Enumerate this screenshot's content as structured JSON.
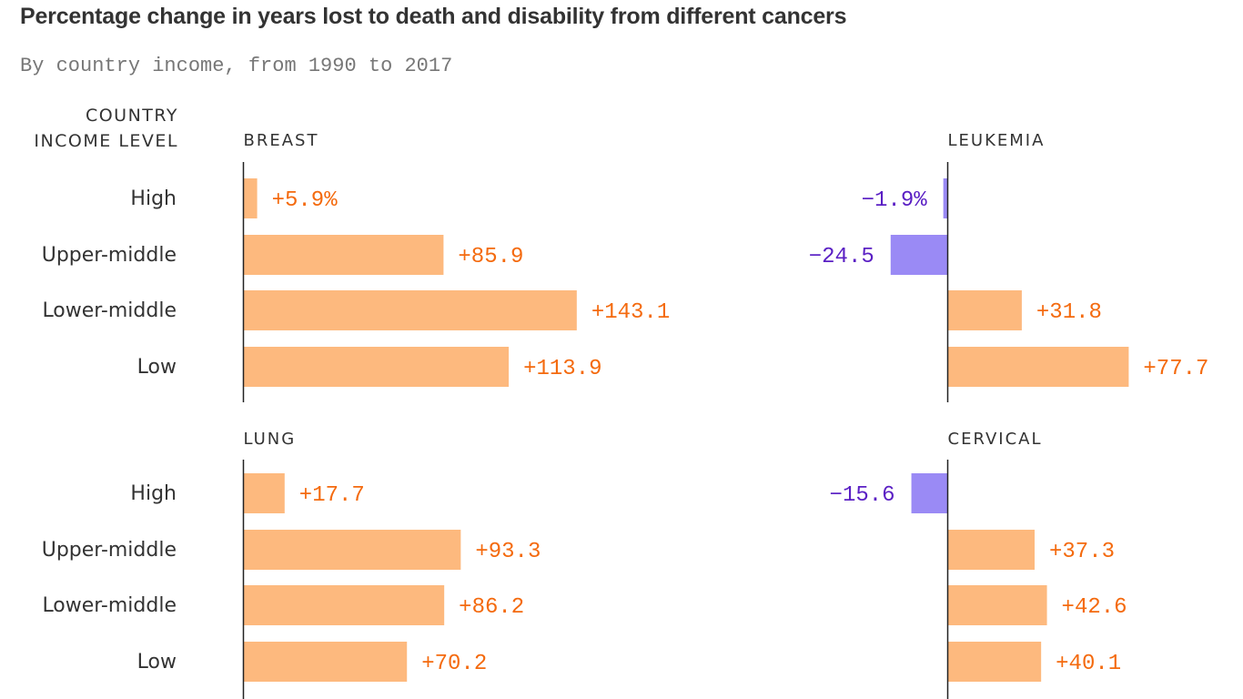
{
  "title": "Percentage change in years lost to death and disability from different cancers",
  "subtitle": "By country income, from 1990 to 2017",
  "chart_data": {
    "type": "bar",
    "orientation": "horizontal",
    "row_header": [
      "COUNTRY",
      "INCOME LEVEL"
    ],
    "categories": [
      "High",
      "Upper-middle",
      "Lower-middle",
      "Low"
    ],
    "colors": {
      "positive_bar": "#fdb97e",
      "positive_text": "#f46a0e",
      "negative_bar": "#9a8af5",
      "negative_text": "#5a1fc4",
      "axis": "#222222"
    },
    "panels": [
      {
        "name": "BREAST",
        "values": [
          5.9,
          85.9,
          143.1,
          113.9
        ],
        "labels": [
          "+5.9%",
          "+85.9",
          "+143.1",
          "+113.9"
        ]
      },
      {
        "name": "LEUKEMIA",
        "values": [
          -1.9,
          -24.5,
          31.8,
          77.7
        ],
        "labels": [
          "−1.9%",
          "−24.5",
          "+31.8",
          "+77.7"
        ]
      },
      {
        "name": "LUNG",
        "values": [
          17.7,
          93.3,
          86.2,
          70.2
        ],
        "labels": [
          "+17.7",
          "+93.3",
          "+86.2",
          "+70.2"
        ]
      },
      {
        "name": "CERVICAL",
        "values": [
          -15.6,
          37.3,
          42.6,
          40.1
        ],
        "labels": [
          "−15.6",
          "+37.3",
          "+42.6",
          "+40.1"
        ]
      }
    ]
  }
}
